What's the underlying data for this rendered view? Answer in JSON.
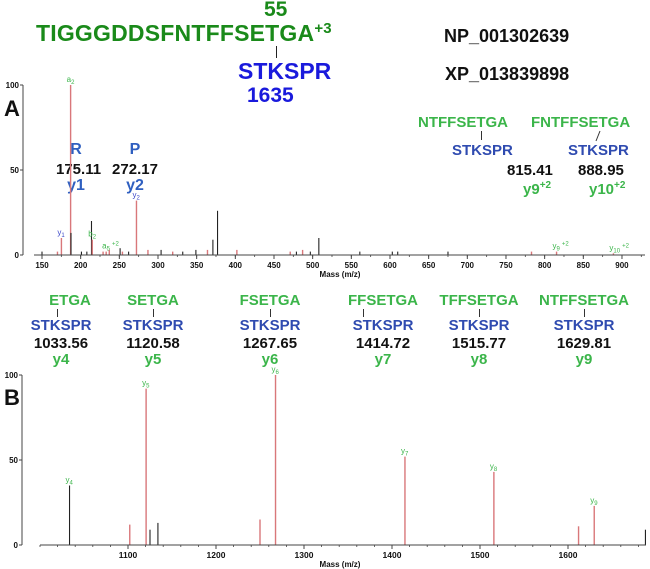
{
  "header": {
    "site_number": "55",
    "peptide": "TIGGGDDSFNTFFSETGA",
    "charge": "+3",
    "crosslinked_peptide": "STKSPR",
    "crosslinked_site": "1635",
    "accessions": [
      "NP_001302639",
      "XP_013839898"
    ]
  },
  "panel_a": {
    "label": "A",
    "annotations": [
      {
        "residue": "R",
        "mz": "175.11",
        "ion": "y1"
      },
      {
        "residue": "P",
        "mz": "272.17",
        "ion": "y2"
      },
      {
        "seq": "NTFFSETGA",
        "pep": "STKSPR",
        "mz": "815.41",
        "ion": "y9",
        "charge": "+2"
      },
      {
        "seq": "FNTFFSETGA",
        "pep": "STKSPR",
        "mz": "888.95",
        "ion": "y10",
        "charge": "+2"
      }
    ]
  },
  "panel_b": {
    "label": "B",
    "annotations": [
      {
        "seq": "ETGA",
        "pep": "STKSPR",
        "mz": "1033.56",
        "ion": "y4"
      },
      {
        "seq": "SETGA",
        "pep": "STKSPR",
        "mz": "1120.58",
        "ion": "y5"
      },
      {
        "seq": "FSETGA",
        "pep": "STKSPR",
        "mz": "1267.65",
        "ion": "y6"
      },
      {
        "seq": "FFSETGA",
        "pep": "STKSPR",
        "mz": "1414.72",
        "ion": "y7"
      },
      {
        "seq": "TFFSETGA",
        "pep": "STKSPR",
        "mz": "1515.77",
        "ion": "y8"
      },
      {
        "seq": "NTFFSETGA",
        "pep": "STKSPR",
        "mz": "1629.81",
        "ion": "y9"
      }
    ]
  },
  "chart_data": [
    {
      "type": "bar",
      "title": "A",
      "xlabel": "Mass (m/z)",
      "ylabel": "",
      "xlim": [
        140,
        935
      ],
      "ylim": [
        0,
        100
      ],
      "xticks": [
        150,
        200,
        250,
        300,
        350,
        400,
        450,
        500,
        550,
        600,
        650,
        700,
        750,
        800,
        850,
        900
      ],
      "yticks": [
        0,
        50,
        100
      ],
      "peaks": [
        {
          "mz": 150,
          "intensity": 2,
          "color": "black"
        },
        {
          "mz": 170,
          "intensity": 2,
          "color": "red"
        },
        {
          "mz": 175.11,
          "intensity": 10,
          "color": "red",
          "label": "y1"
        },
        {
          "mz": 187,
          "intensity": 100,
          "color": "red",
          "label": "a2"
        },
        {
          "mz": 187.5,
          "intensity": 13,
          "color": "black"
        },
        {
          "mz": 201,
          "intensity": 2,
          "color": "black"
        },
        {
          "mz": 208,
          "intensity": 2,
          "color": "black"
        },
        {
          "mz": 214,
          "intensity": 20,
          "color": "black"
        },
        {
          "mz": 215,
          "intensity": 9,
          "color": "red",
          "label": "b2"
        },
        {
          "mz": 229,
          "intensity": 2,
          "color": "red"
        },
        {
          "mz": 233,
          "intensity": 2,
          "color": "red",
          "label": "a5+2"
        },
        {
          "mz": 237,
          "intensity": 3,
          "color": "red"
        },
        {
          "mz": 251,
          "intensity": 4,
          "color": "black"
        },
        {
          "mz": 254,
          "intensity": 2,
          "color": "red"
        },
        {
          "mz": 262,
          "intensity": 2,
          "color": "black"
        },
        {
          "mz": 272.17,
          "intensity": 32,
          "color": "red",
          "label": "y2"
        },
        {
          "mz": 287,
          "intensity": 3,
          "color": "red"
        },
        {
          "mz": 304,
          "intensity": 3,
          "color": "black"
        },
        {
          "mz": 319,
          "intensity": 2,
          "color": "red"
        },
        {
          "mz": 332,
          "intensity": 2,
          "color": "black"
        },
        {
          "mz": 349,
          "intensity": 3,
          "color": "black"
        },
        {
          "mz": 364,
          "intensity": 3,
          "color": "red"
        },
        {
          "mz": 371,
          "intensity": 9,
          "color": "black"
        },
        {
          "mz": 377,
          "intensity": 26,
          "color": "black"
        },
        {
          "mz": 402,
          "intensity": 3,
          "color": "red"
        },
        {
          "mz": 471,
          "intensity": 2,
          "color": "red"
        },
        {
          "mz": 479,
          "intensity": 2,
          "color": "black"
        },
        {
          "mz": 487,
          "intensity": 3,
          "color": "red"
        },
        {
          "mz": 497,
          "intensity": 2,
          "color": "black"
        },
        {
          "mz": 508,
          "intensity": 10,
          "color": "black"
        },
        {
          "mz": 561,
          "intensity": 2,
          "color": "black"
        },
        {
          "mz": 603,
          "intensity": 2,
          "color": "black"
        },
        {
          "mz": 610,
          "intensity": 2,
          "color": "black"
        },
        {
          "mz": 675,
          "intensity": 2,
          "color": "black"
        },
        {
          "mz": 783,
          "intensity": 2,
          "color": "red"
        },
        {
          "mz": 815.41,
          "intensity": 2,
          "color": "red",
          "label": "y9+2"
        },
        {
          "mz": 888.95,
          "intensity": 1,
          "color": "red",
          "label": "y10+2"
        }
      ]
    },
    {
      "type": "bar",
      "title": "B",
      "xlabel": "Mass (m/z)",
      "ylabel": "",
      "xlim": [
        1000,
        1690
      ],
      "ylim": [
        0,
        100
      ],
      "xticks": [
        1100,
        1200,
        1300,
        1400,
        1500,
        1600
      ],
      "yticks": [
        0,
        50,
        100
      ],
      "peaks": [
        {
          "mz": 1033.56,
          "intensity": 35,
          "color": "black",
          "label": "y4"
        },
        {
          "mz": 1102,
          "intensity": 12,
          "color": "red"
        },
        {
          "mz": 1120.58,
          "intensity": 92,
          "color": "red",
          "label": "y5"
        },
        {
          "mz": 1125,
          "intensity": 9,
          "color": "black"
        },
        {
          "mz": 1134,
          "intensity": 13,
          "color": "black"
        },
        {
          "mz": 1250,
          "intensity": 15,
          "color": "red"
        },
        {
          "mz": 1267.65,
          "intensity": 100,
          "color": "red",
          "label": "y6"
        },
        {
          "mz": 1414.72,
          "intensity": 52,
          "color": "red",
          "label": "y7"
        },
        {
          "mz": 1515.77,
          "intensity": 43,
          "color": "red",
          "label": "y8"
        },
        {
          "mz": 1612,
          "intensity": 11,
          "color": "red"
        },
        {
          "mz": 1629.81,
          "intensity": 23,
          "color": "red",
          "label": "y9"
        },
        {
          "mz": 1688,
          "intensity": 9,
          "color": "black"
        }
      ]
    }
  ]
}
